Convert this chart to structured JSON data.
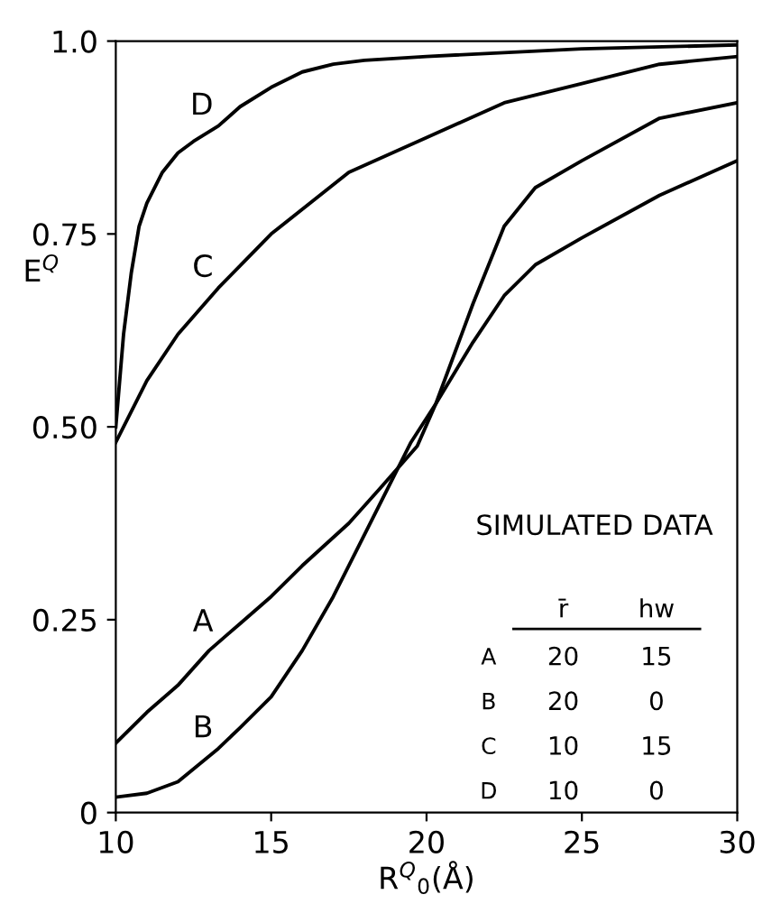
{
  "chart_data": {
    "type": "line",
    "xlabel": "R$^{Q}$$_{0}$(Å)",
    "ylabel": "E$^{Q}$",
    "series": [
      {
        "color": "#000000",
        "x": [
          10,
          11,
          12,
          13,
          14,
          15,
          16,
          17.5,
          18.5,
          19.7,
          20.3,
          21.5,
          22.5,
          23.5,
          25,
          27.5,
          30
        ],
        "values": [
          0.09,
          0.13,
          0.165,
          0.21,
          0.245,
          0.28,
          0.32,
          0.375,
          0.42,
          0.475,
          0.53,
          0.61,
          0.67,
          0.71,
          0.745,
          0.8,
          0.845
        ]
      },
      {
        "color": "#000000",
        "x": [
          10,
          11,
          12,
          13.3,
          14,
          15,
          16,
          17,
          18.5,
          19.5,
          20.3,
          21.5,
          22.5,
          23.5,
          25,
          27.5,
          30
        ],
        "values": [
          0.02,
          0.025,
          0.04,
          0.083,
          0.11,
          0.15,
          0.21,
          0.28,
          0.4,
          0.48,
          0.53,
          0.66,
          0.76,
          0.81,
          0.845,
          0.9,
          0.92
        ]
      },
      {
        "color": "#000000",
        "x": [
          10,
          11,
          12,
          13.3,
          15,
          17.5,
          20,
          22.5,
          25,
          27.5,
          30
        ],
        "values": [
          0.48,
          0.56,
          0.62,
          0.68,
          0.75,
          0.83,
          0.875,
          0.92,
          0.945,
          0.97,
          0.98
        ]
      },
      {
        "color": "#000000",
        "x": [
          10,
          10.25,
          10.5,
          10.75,
          11,
          11.5,
          12,
          12.5,
          13.3,
          14,
          15,
          16,
          17,
          18,
          20,
          25,
          30
        ],
        "values": [
          0.5,
          0.62,
          0.7,
          0.76,
          0.79,
          0.83,
          0.855,
          0.87,
          0.89,
          0.915,
          0.94,
          0.96,
          0.97,
          0.975,
          0.98,
          0.99,
          0.995
        ]
      }
    ],
    "xlim": [
      10,
      30
    ],
    "ylim": [
      0,
      1
    ],
    "xticks": [
      10,
      15,
      20,
      25,
      30
    ],
    "yticks": [
      {
        "value": 0,
        "label": "0"
      },
      0.25,
      {
        "value": 0.5,
        "label": "0.50"
      },
      0.75,
      {
        "value": 1.0,
        "label": "1.0"
      }
    ],
    "grid": false,
    "legend": false,
    "marker": "none",
    "line_style": "solid",
    "annotations": [
      "A",
      "B",
      "C",
      "D",
      "SIMULATED DATA",
      "r̄",
      "hw",
      "A",
      "20",
      "15",
      "B",
      "20",
      "0",
      "C",
      "10",
      "15",
      "D",
      "10",
      "0"
    ]
  }
}
